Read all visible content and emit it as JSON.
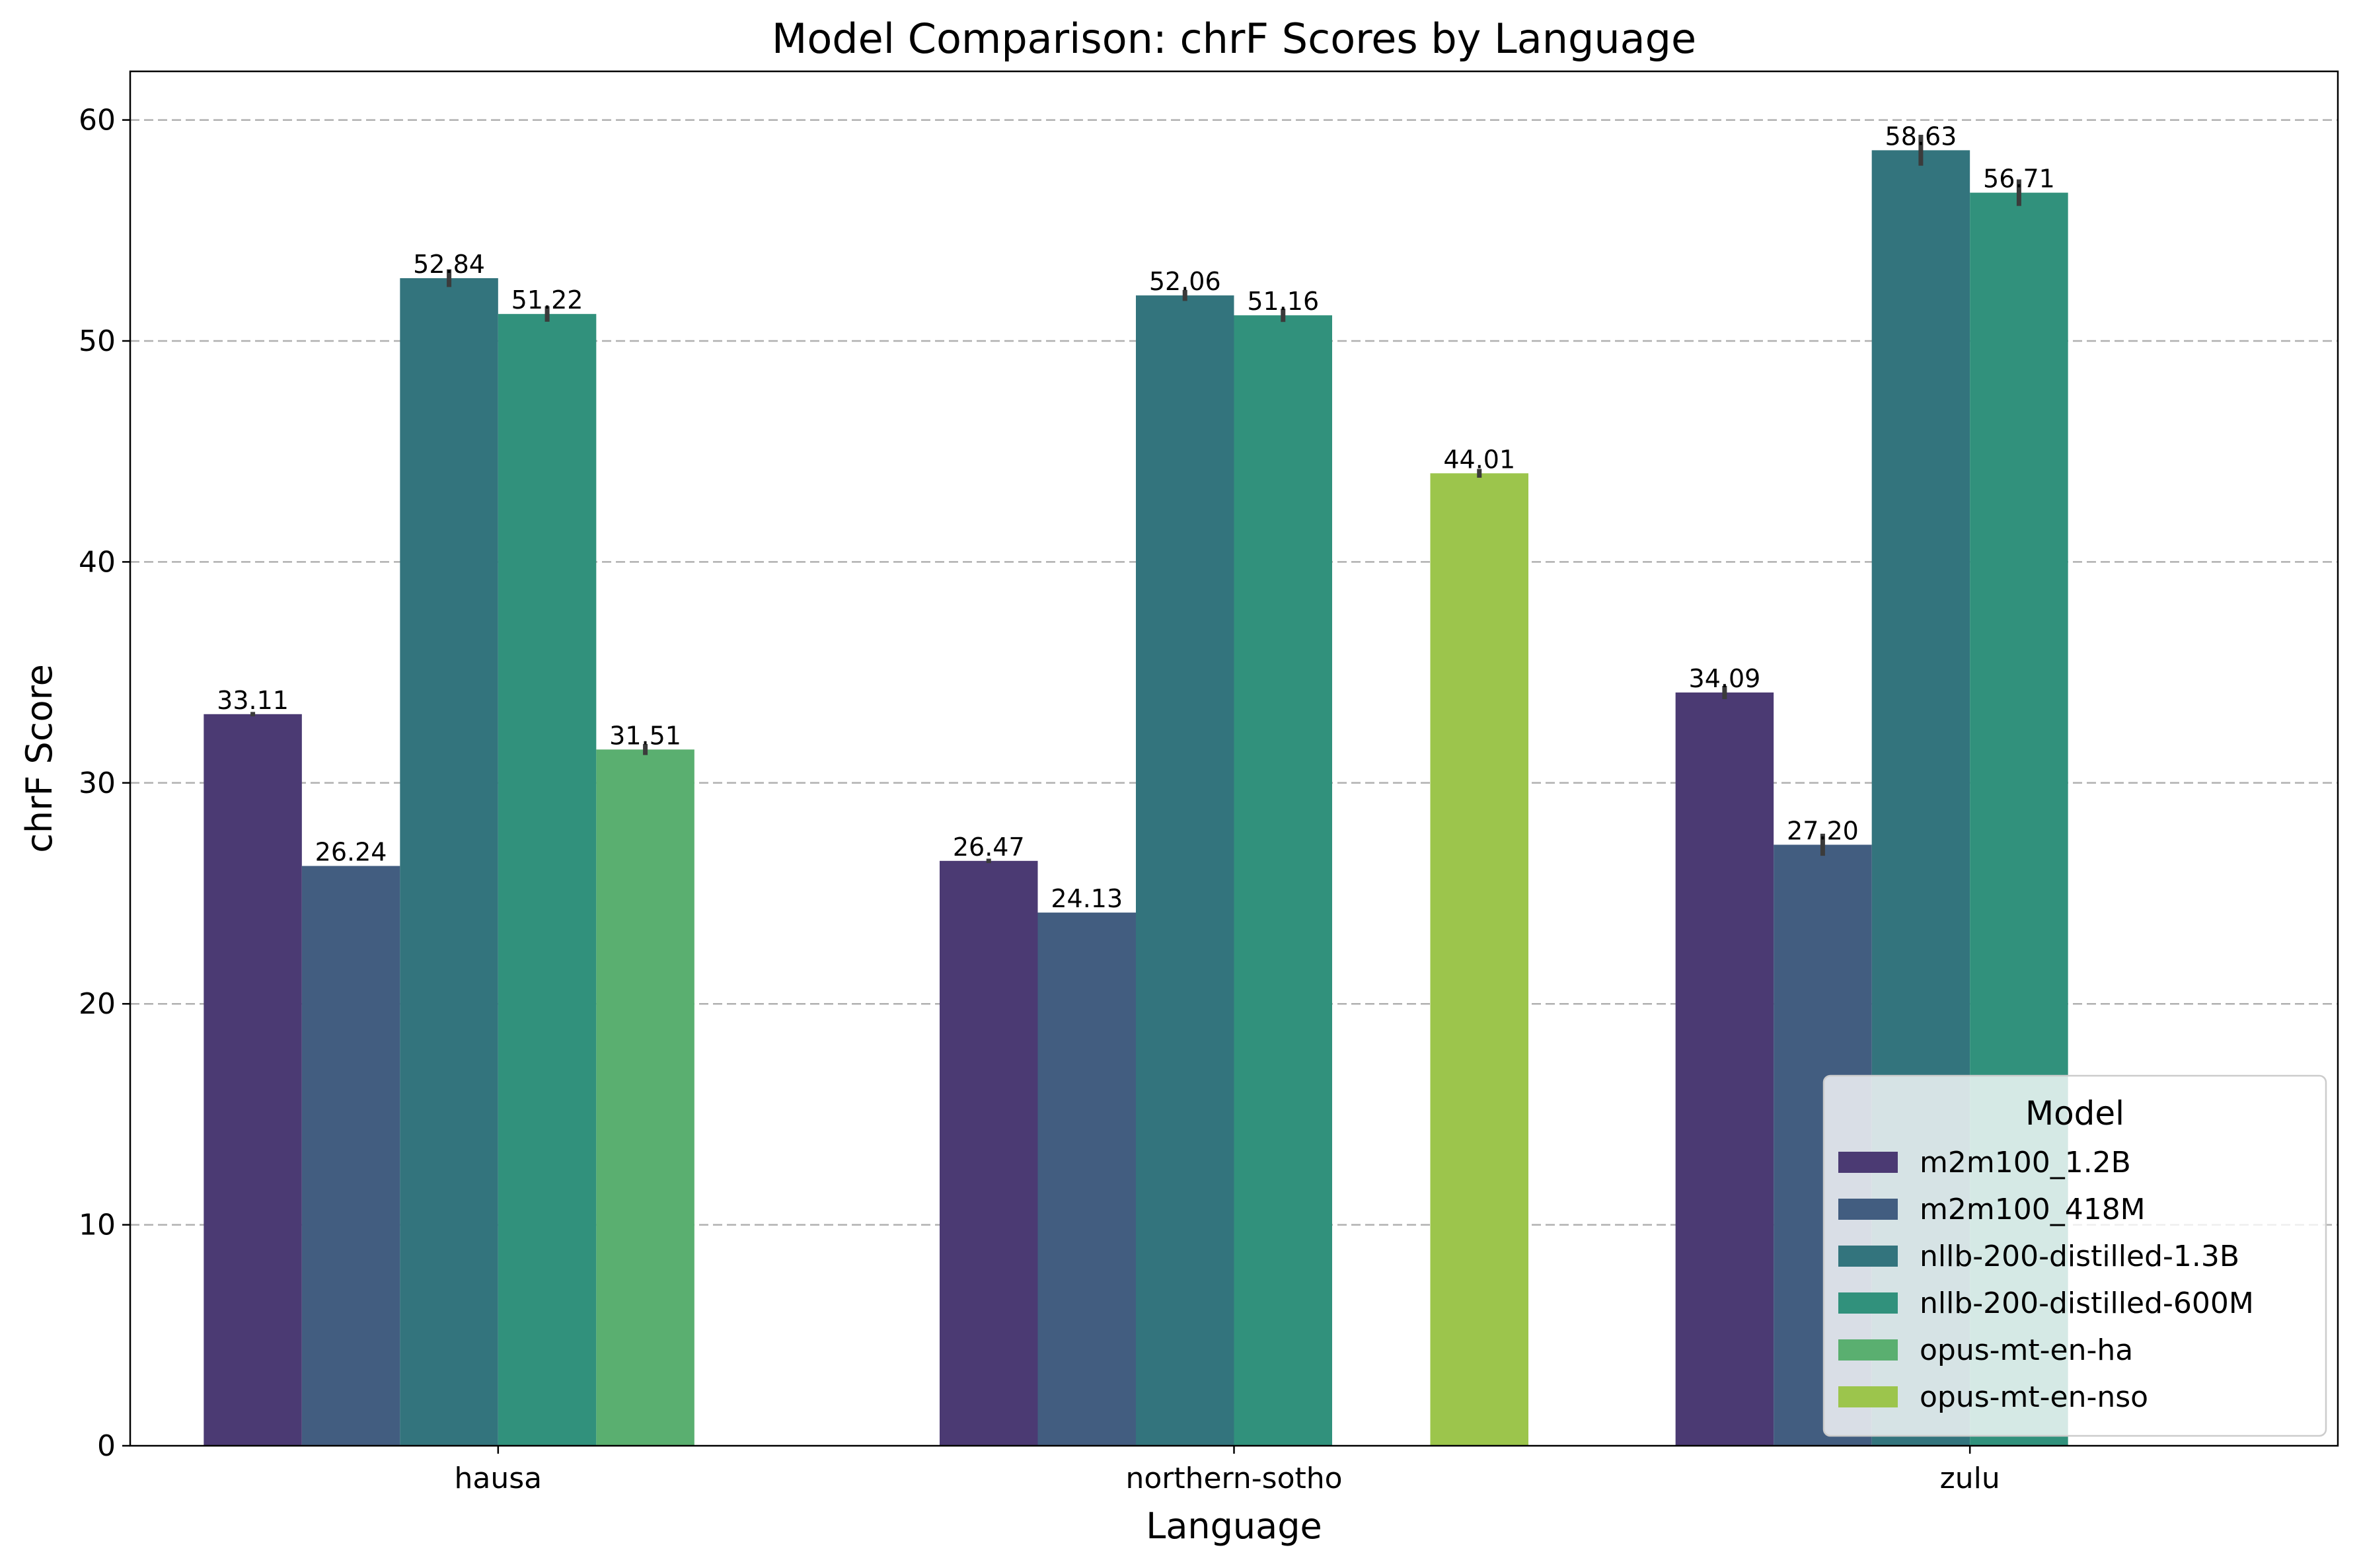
{
  "chart_data": {
    "type": "bar",
    "title": "Model Comparison: chrF Scores by Language",
    "xlabel": "Language",
    "ylabel": "chrF Score",
    "categories": [
      "hausa",
      "northern-sotho",
      "zulu"
    ],
    "ylim": [
      0,
      62.2
    ],
    "yticks": [
      0,
      10,
      20,
      30,
      40,
      50,
      60
    ],
    "grid": "y-dashed",
    "legend": {
      "title": "Model",
      "placement": "lower-right"
    },
    "series": [
      {
        "name": "m2m100_1.2B",
        "color": "#4b3a73",
        "values": [
          33.11,
          26.47,
          34.09
        ],
        "labels": [
          "33.11",
          "26.47",
          "34.09"
        ],
        "err": [
          0.1,
          0.1,
          0.3
        ]
      },
      {
        "name": "m2m100_418M",
        "color": "#425d80",
        "values": [
          26.24,
          24.13,
          27.2
        ],
        "labels": [
          "26.24",
          "24.13",
          "27.20"
        ],
        "err": [
          0.0,
          0.0,
          0.5
        ]
      },
      {
        "name": "nllb-200-distilled-1.3B",
        "color": "#33747d",
        "values": [
          52.84,
          52.06,
          58.63
        ],
        "labels": [
          "52.84",
          "52.06",
          "58.63"
        ],
        "err": [
          0.4,
          0.25,
          0.7
        ]
      },
      {
        "name": "nllb-200-distilled-600M",
        "color": "#31917c",
        "values": [
          51.22,
          51.16,
          56.71
        ],
        "labels": [
          "51.22",
          "51.16",
          "56.71"
        ],
        "err": [
          0.35,
          0.3,
          0.6
        ]
      },
      {
        "name": "opus-mt-en-ha",
        "color": "#5aaf70",
        "values": [
          31.51,
          null,
          null
        ],
        "labels": [
          "31.51",
          "",
          ""
        ],
        "err": [
          0.25,
          0,
          0
        ]
      },
      {
        "name": "opus-mt-en-nso",
        "color": "#9cc54c",
        "values": [
          null,
          44.01,
          null
        ],
        "labels": [
          "",
          "44.01",
          ""
        ],
        "err": [
          0,
          0.2,
          0
        ]
      }
    ]
  }
}
